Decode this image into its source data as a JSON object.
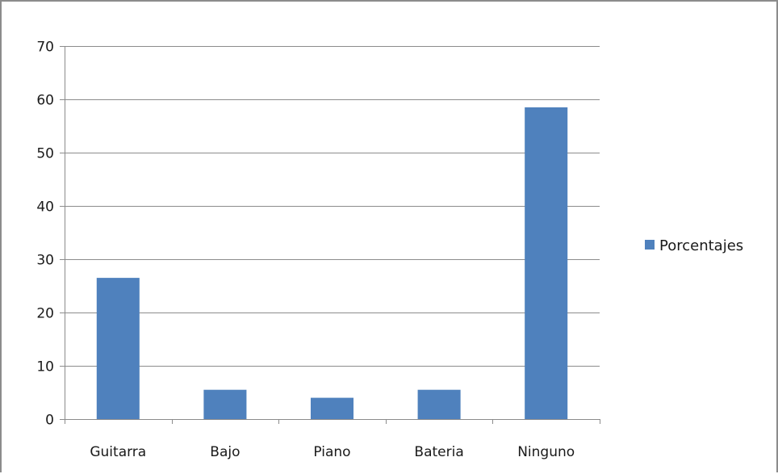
{
  "chart_data": {
    "type": "bar",
    "categories": [
      "Guitarra",
      "Bajo",
      "Piano",
      "Bateria",
      "Ninguno"
    ],
    "series": [
      {
        "name": "Porcentajes",
        "values": [
          26.5,
          5.5,
          4.0,
          5.5,
          58.5
        ],
        "color": "#4f81bd"
      }
    ],
    "ylim": [
      0,
      70
    ],
    "yticks": [
      0,
      10,
      20,
      30,
      40,
      50,
      60,
      70
    ],
    "grid": true,
    "legend": "right"
  }
}
